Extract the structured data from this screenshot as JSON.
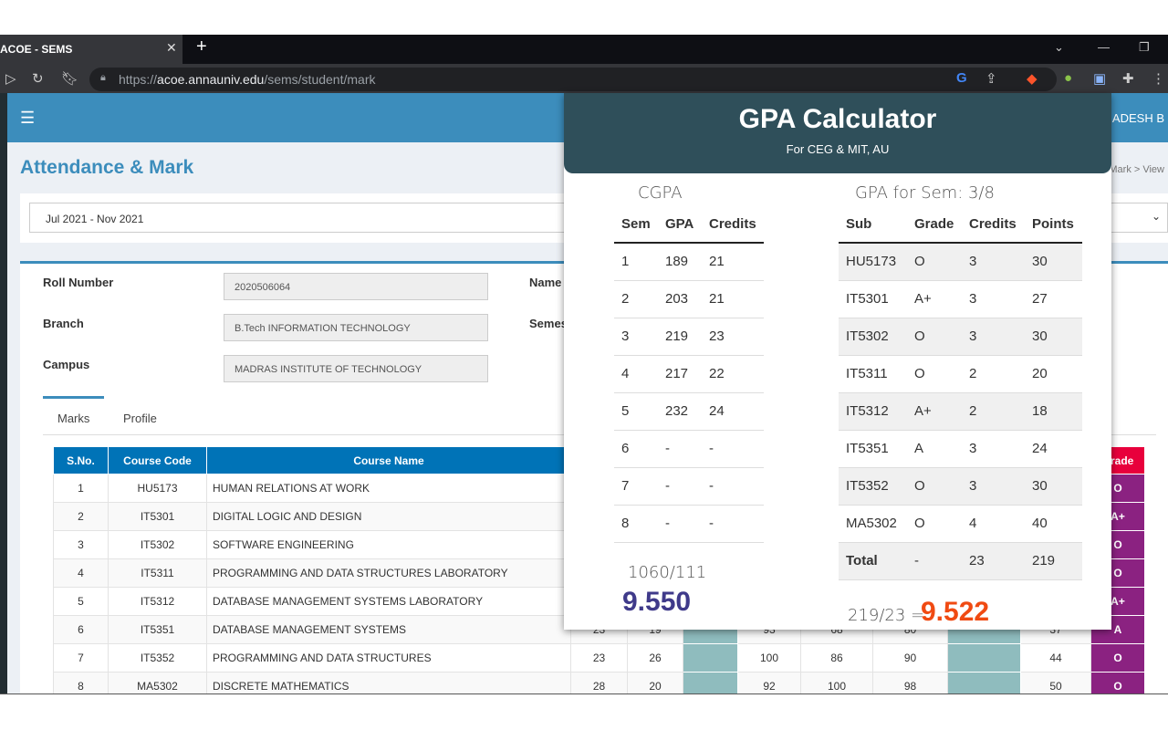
{
  "browser": {
    "tab_title": "ACOE - SEMS",
    "url_domain": "acoe.annauniv.edu",
    "url_prefix": "https://",
    "url_path": "/sems/student/mark"
  },
  "header": {
    "user": "JAGADESH B",
    "breadcrumb": "Attendance & Mark  >  View"
  },
  "page": {
    "title": "Attendance & Mark",
    "session": "Jul 2021 - Nov 2021"
  },
  "student": {
    "roll_label": "Roll Number",
    "roll": "2020506064",
    "branch_label": "Branch",
    "branch": "B.Tech INFORMATION TECHNOLOGY",
    "campus_label": "Campus",
    "campus": "MADRAS INSTITUTE OF TECHNOLOGY",
    "name_label": "Name",
    "sem_label": "Semester"
  },
  "tabs": [
    "Marks",
    "Profile"
  ],
  "marks": {
    "headers": [
      "S.No.",
      "Course Code",
      "Course Name",
      "Grade"
    ],
    "rows": [
      {
        "sno": "1",
        "code": "HU5173",
        "name": "HUMAN RELATIONS AT WORK",
        "c": [
          "",
          "",
          "",
          "",
          "",
          "",
          "",
          ""
        ],
        "grade": "O"
      },
      {
        "sno": "2",
        "code": "IT5301",
        "name": "DIGITAL LOGIC AND DESIGN",
        "c": [
          "",
          "",
          "",
          "",
          "",
          "",
          "",
          ""
        ],
        "grade": "A+"
      },
      {
        "sno": "3",
        "code": "IT5302",
        "name": "SOFTWARE ENGINEERING",
        "c": [
          "",
          "",
          "",
          "",
          "",
          "",
          "",
          ""
        ],
        "grade": "O"
      },
      {
        "sno": "4",
        "code": "IT5311",
        "name": "PROGRAMMING AND DATA STRUCTURES LABORATORY",
        "c": [
          "",
          "",
          "",
          "",
          "",
          "",
          "",
          ""
        ],
        "grade": "O"
      },
      {
        "sno": "5",
        "code": "IT5312",
        "name": "DATABASE MANAGEMENT SYSTEMS LABORATORY",
        "c": [
          "",
          "",
          "",
          "",
          "",
          "",
          "",
          ""
        ],
        "grade": "A+"
      },
      {
        "sno": "6",
        "code": "IT5351",
        "name": "DATABASE MANAGEMENT SYSTEMS",
        "c": [
          "23",
          "19",
          "",
          "93",
          "68",
          "80",
          "",
          "37"
        ],
        "grade": "A"
      },
      {
        "sno": "7",
        "code": "IT5352",
        "name": "PROGRAMMING AND DATA STRUCTURES",
        "c": [
          "23",
          "26",
          "",
          "100",
          "86",
          "90",
          "",
          "44"
        ],
        "grade": "O"
      },
      {
        "sno": "8",
        "code": "MA5302",
        "name": "DISCRETE MATHEMATICS",
        "c": [
          "28",
          "20",
          "",
          "92",
          "100",
          "98",
          "",
          "50"
        ],
        "grade": "O"
      }
    ]
  },
  "gpa": {
    "title": "GPA Calculator",
    "subtitle": "For CEG & MIT, AU",
    "cgpa_caption": "CGPA",
    "cgpa_headers": [
      "Sem",
      "GPA",
      "Credits"
    ],
    "cgpa_rows": [
      [
        "1",
        "189",
        "21"
      ],
      [
        "2",
        "203",
        "21"
      ],
      [
        "3",
        "219",
        "23"
      ],
      [
        "4",
        "217",
        "22"
      ],
      [
        "5",
        "232",
        "24"
      ],
      [
        "6",
        "-",
        "-"
      ],
      [
        "7",
        "-",
        "-"
      ],
      [
        "8",
        "-",
        "-"
      ]
    ],
    "cgpa_fraction": "1060/111",
    "cgpa_value": "9.550",
    "sem_caption": "GPA for Sem: 3/8",
    "sem_headers": [
      "Sub",
      "Grade",
      "Credits",
      "Points"
    ],
    "sem_rows": [
      [
        "HU5173",
        "O",
        "3",
        "30"
      ],
      [
        "IT5301",
        "A+",
        "3",
        "27"
      ],
      [
        "IT5302",
        "O",
        "3",
        "30"
      ],
      [
        "IT5311",
        "O",
        "2",
        "20"
      ],
      [
        "IT5312",
        "A+",
        "2",
        "18"
      ],
      [
        "IT5351",
        "A",
        "3",
        "24"
      ],
      [
        "IT5352",
        "O",
        "3",
        "30"
      ],
      [
        "MA5302",
        "O",
        "4",
        "40"
      ]
    ],
    "total": [
      "Total",
      "-",
      "23",
      "219"
    ],
    "gpa_fraction": "219/23 =",
    "gpa_value": "9.522",
    "colors": {
      "cgpa": "#3f3a8a",
      "gpa": "#f04a12",
      "header": "#2f4f5a"
    }
  }
}
